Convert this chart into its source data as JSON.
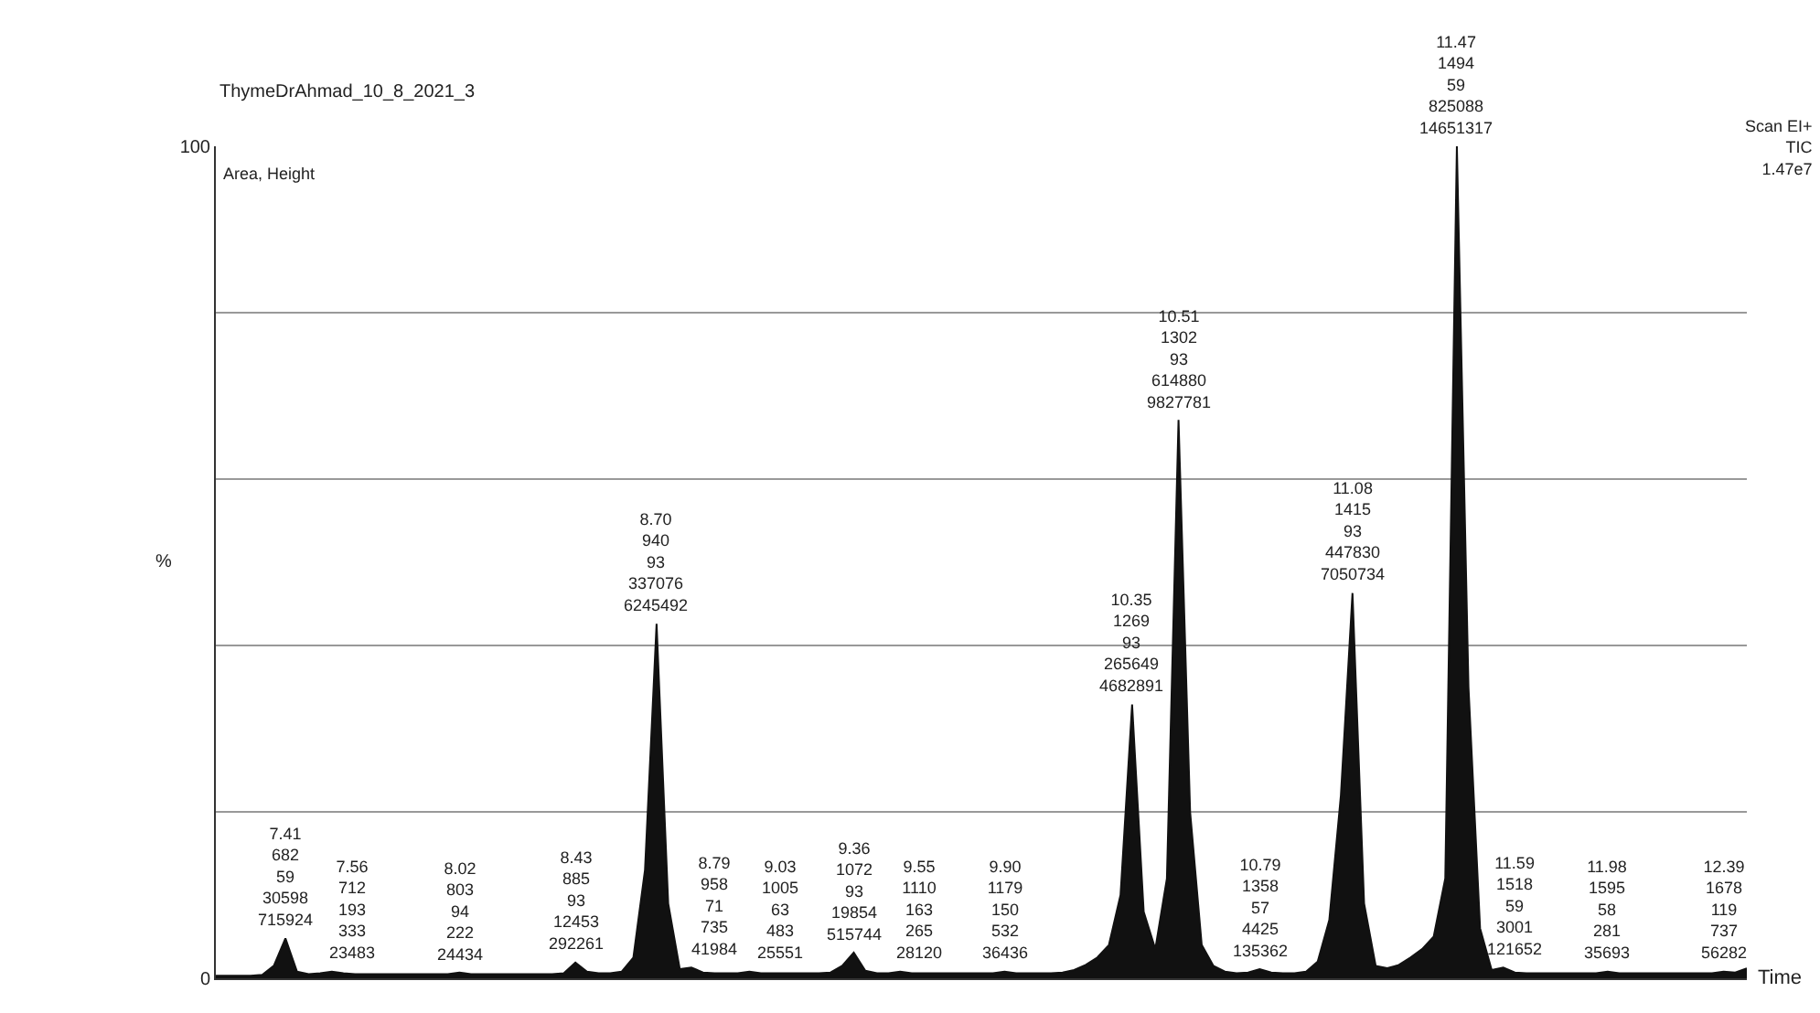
{
  "chart_data": {
    "type": "area",
    "title": "ThymeDrAhmad_10_8_2021_3",
    "xlabel": "Time",
    "ylabel": "%",
    "categories": [
      null,
      null,
      null,
      null,
      null,
      null,
      null,
      null,
      null,
      null,
      null,
      null,
      null,
      null,
      null,
      null,
      null,
      null,
      null,
      null,
      null,
      null,
      null,
      null,
      null,
      null,
      null,
      null,
      null,
      null,
      null,
      null,
      null,
      null,
      null,
      null,
      null,
      null,
      null,
      null,
      null,
      null,
      null,
      null,
      null,
      null,
      null,
      null,
      null,
      null,
      null,
      null,
      null,
      null,
      null,
      null,
      null,
      null,
      null,
      null,
      null,
      null,
      null,
      null,
      null,
      null,
      null,
      null,
      null,
      null,
      null,
      null,
      null,
      null,
      null,
      null,
      null,
      null,
      null,
      null,
      null,
      null,
      null,
      null,
      null,
      null,
      null,
      null,
      null,
      null,
      null,
      null,
      null,
      null,
      null,
      null,
      null,
      null,
      null,
      null,
      null,
      null,
      null,
      null,
      null,
      null,
      null,
      null,
      null,
      null,
      null,
      null,
      null,
      null,
      null,
      null,
      null,
      null,
      null,
      null,
      null,
      null,
      null,
      null,
      null,
      null,
      null,
      null,
      null,
      null,
      null,
      null,
      null
    ],
    "series": [
      {
        "color": "#111111",
        "values": [
          0.3,
          0.3,
          0.3,
          0.3,
          0.4,
          1.5,
          4.8,
          0.8,
          0.5,
          0.6,
          0.8,
          0.6,
          0.5,
          0.5,
          0.5,
          0.5,
          0.5,
          0.5,
          0.5,
          0.5,
          0.5,
          0.7,
          0.5,
          0.5,
          0.5,
          0.5,
          0.5,
          0.5,
          0.5,
          0.5,
          0.6,
          1.9,
          0.8,
          0.6,
          0.6,
          0.8,
          2.5,
          13,
          42.6,
          9,
          1.1,
          1.3,
          0.7,
          0.6,
          0.6,
          0.6,
          0.8,
          0.6,
          0.6,
          0.6,
          0.6,
          0.6,
          0.6,
          0.7,
          1.5,
          3.1,
          0.9,
          0.6,
          0.6,
          0.8,
          0.6,
          0.6,
          0.6,
          0.6,
          0.6,
          0.6,
          0.6,
          0.6,
          0.8,
          0.6,
          0.6,
          0.6,
          0.6,
          0.7,
          1.0,
          1.6,
          2.5,
          4,
          10,
          32.9,
          8,
          3.5,
          12,
          67.1,
          20,
          4,
          1.5,
          0.8,
          0.6,
          0.7,
          1.1,
          0.7,
          0.6,
          0.6,
          0.8,
          2,
          7,
          22,
          46.3,
          9,
          1.5,
          1.2,
          1.6,
          2.5,
          3.5,
          5,
          12,
          100,
          35,
          6,
          1.0,
          1.3,
          0.7,
          0.6,
          0.6,
          0.6,
          0.6,
          0.6,
          0.6,
          0.6,
          0.8,
          0.6,
          0.6,
          0.6,
          0.6,
          0.6,
          0.6,
          0.6,
          0.6,
          0.6,
          0.8,
          0.7,
          1.2
        ]
      }
    ],
    "ylim": [
      0,
      100
    ],
    "yticks": [
      0,
      {
        "value": 20,
        "label": null
      },
      {
        "value": 40,
        "label": null
      },
      {
        "value": 60,
        "label": null
      },
      {
        "value": 80,
        "label": null
      },
      100
    ],
    "grid": "y",
    "annotations": [
      "Area, Height",
      "Scan EI+\nTIC\n1.47e7",
      {
        "text": "7.41\n682\n59\n30598\n715924",
        "y": 4.8
      },
      {
        "text": "7.56\n712\n193\n333\n23483",
        "y": 0.8
      },
      {
        "text": "8.02\n803\n94\n222\n24434",
        "y": 0.7
      },
      {
        "text": "8.43\n885\n93\n12453\n292261",
        "y": 1.9
      },
      {
        "text": "8.70\n940\n93\n337076\n6245492",
        "y": 42.6
      },
      {
        "text": "8.79\n958\n71\n735\n41984",
        "y": 1.3
      },
      {
        "text": "9.03\n1005\n63\n483\n25551",
        "y": 0.8
      },
      {
        "text": "9.36\n1072\n93\n19854\n515744",
        "y": 3.1
      },
      {
        "text": "9.55\n1110\n163\n265\n28120",
        "y": 0.8
      },
      {
        "text": "9.90\n1179\n150\n532\n36436",
        "y": 0.8
      },
      {
        "text": "10.35\n1269\n93\n265649\n4682891",
        "y": 32.9
      },
      {
        "text": "10.51\n1302\n93\n614880\n9827781",
        "y": 67.1
      },
      {
        "text": "10.79\n1358\n57\n4425\n135362",
        "y": 1.1
      },
      {
        "text": "11.08\n1415\n93\n447830\n7050734",
        "y": 46.3
      },
      {
        "text": "11.47\n1494\n59\n825088\n14651317",
        "y": 100
      },
      {
        "text": "11.59\n1518\n59\n3001\n121652",
        "y": 1.3
      },
      {
        "text": "11.98\n1595\n58\n281\n35693",
        "y": 0.8
      },
      {
        "text": "12.39\n1678\n119\n737\n56282",
        "y": 0.8
      }
    ]
  }
}
